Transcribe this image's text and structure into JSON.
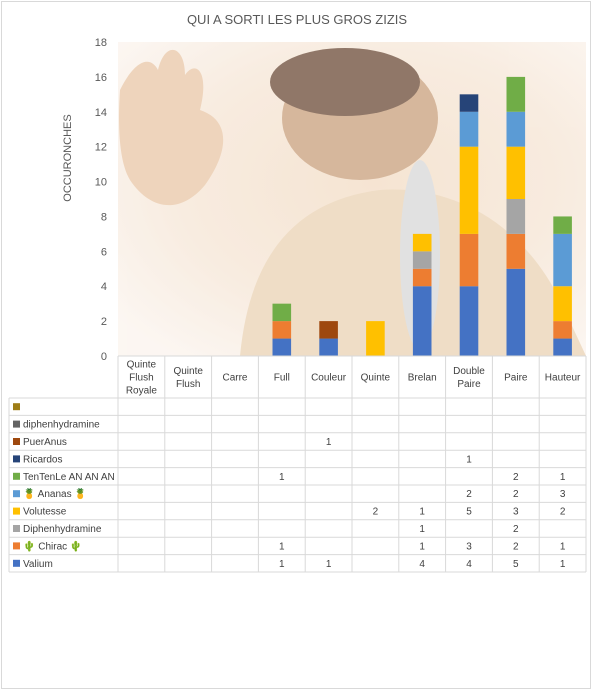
{
  "chart_data": {
    "type": "bar",
    "stacked": true,
    "title": "QUI A SORTI LES PLUS GROS ZIZIS",
    "ylabel": "OCCURONCHES",
    "xlabel": "",
    "ylim": [
      0,
      18
    ],
    "yticks": [
      0,
      2,
      4,
      6,
      8,
      10,
      12,
      14,
      16,
      18
    ],
    "grid": false,
    "legend": "data-table-below",
    "categories": [
      [
        "Quinte",
        "Flush",
        "Royale"
      ],
      [
        "Quinte",
        "Flush"
      ],
      [
        "Carre"
      ],
      [
        "Full"
      ],
      [
        "Couleur"
      ],
      [
        "Quinte"
      ],
      [
        "Brelan"
      ],
      [
        "Double",
        "Paire"
      ],
      [
        "Paire"
      ],
      [
        "Hauteur"
      ]
    ],
    "series": [
      {
        "name": "",
        "color": "#9e7d16",
        "values": [
          null,
          null,
          null,
          null,
          null,
          null,
          null,
          null,
          null,
          null
        ]
      },
      {
        "name": "diphenhydramine",
        "color": "#636363",
        "values": [
          null,
          null,
          null,
          null,
          null,
          null,
          null,
          null,
          null,
          null
        ]
      },
      {
        "name": "PuerAnus",
        "color": "#9e480e",
        "values": [
          null,
          null,
          null,
          null,
          1,
          null,
          null,
          null,
          null,
          null
        ]
      },
      {
        "name": "Ricardos",
        "color": "#264478",
        "values": [
          null,
          null,
          null,
          null,
          null,
          null,
          null,
          1,
          null,
          null
        ]
      },
      {
        "name": "TenTenLe AN AN AN",
        "color": "#70ad47",
        "values": [
          null,
          null,
          null,
          1,
          null,
          null,
          null,
          null,
          2,
          1
        ]
      },
      {
        "name": "🍍 Ananas 🍍",
        "color": "#5b9bd5",
        "values": [
          null,
          null,
          null,
          null,
          null,
          null,
          null,
          2,
          2,
          3
        ]
      },
      {
        "name": "Volutesse",
        "color": "#ffc000",
        "values": [
          null,
          null,
          null,
          null,
          null,
          2,
          1,
          5,
          3,
          2
        ]
      },
      {
        "name": "Diphenhydramine",
        "color": "#a5a5a5",
        "values": [
          null,
          null,
          null,
          null,
          null,
          null,
          1,
          null,
          2,
          null
        ]
      },
      {
        "name": "🌵 Chirac 🌵",
        "color": "#ed7d31",
        "values": [
          null,
          null,
          null,
          1,
          null,
          null,
          1,
          3,
          2,
          1
        ]
      },
      {
        "name": "Valium",
        "color": "#4472c4",
        "values": [
          null,
          null,
          null,
          1,
          1,
          null,
          4,
          4,
          5,
          1
        ]
      }
    ]
  }
}
